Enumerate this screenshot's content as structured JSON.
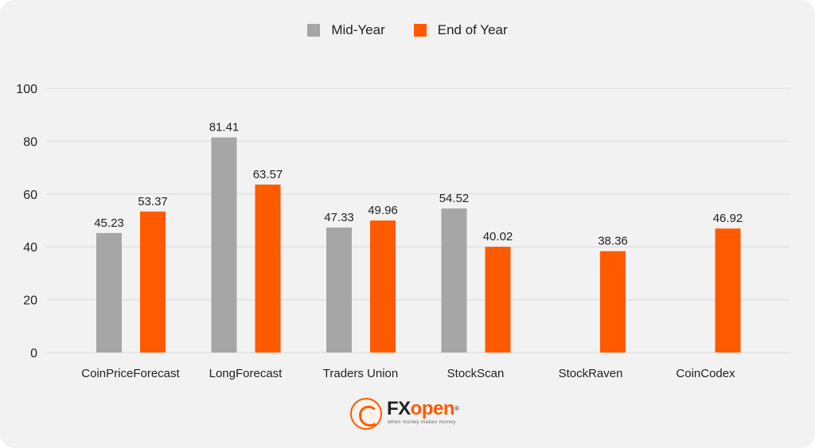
{
  "colors": {
    "background": "#f2f2f2",
    "gridline": "#d8d8d8",
    "mid_year": "#a6a6a6",
    "end_of_year": "#ff5a00",
    "text": "#222222"
  },
  "logo": {
    "fx": "FX",
    "open": "open",
    "registered": "®",
    "tagline": "when money makes money",
    "icon": "fxopen-dragon-icon"
  },
  "chart_data": {
    "type": "bar",
    "title": "",
    "xlabel": "",
    "ylabel": "",
    "ylim": [
      0,
      100
    ],
    "yticks": [
      0,
      20,
      40,
      60,
      80,
      100
    ],
    "grid": true,
    "legend_position": "top-center",
    "categories": [
      "CoinPriceForecast",
      "LongForecast",
      "Traders Union",
      "StockScan",
      "StockRaven",
      "CoinCodex"
    ],
    "series": [
      {
        "name": "Mid-Year",
        "color": "#a6a6a6",
        "values": [
          45.23,
          81.41,
          47.33,
          54.52,
          null,
          null
        ],
        "labels": [
          "45.23",
          "81.41",
          "47.33",
          "54.52",
          "",
          ""
        ]
      },
      {
        "name": "End of Year",
        "color": "#ff5a00",
        "values": [
          53.37,
          63.57,
          49.96,
          40.02,
          38.36,
          46.92
        ],
        "labels": [
          "53.37",
          "63.57",
          "49.96",
          "40.02",
          "38.36",
          "46.92"
        ]
      }
    ]
  }
}
